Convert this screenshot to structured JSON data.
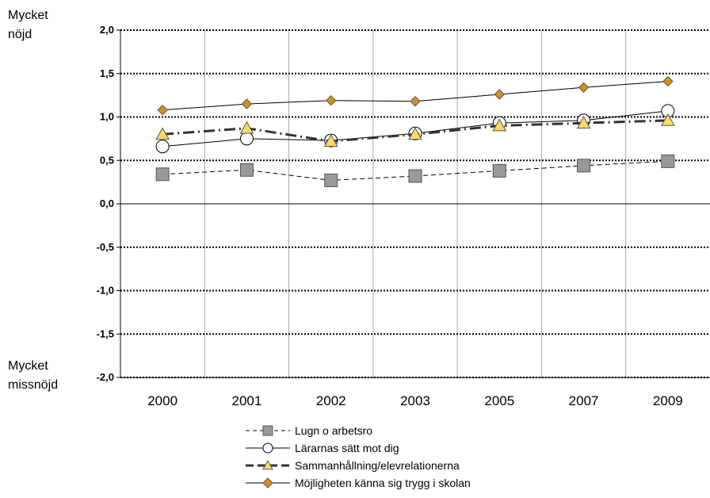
{
  "side_labels": {
    "top_line1": "Mycket",
    "top_line2": "nöjd",
    "bottom_line1": "Mycket",
    "bottom_line2": "missnöjd"
  },
  "chart_data": {
    "type": "line",
    "title": "",
    "xlabel": "",
    "ylabel": "",
    "categories": [
      "2000",
      "2001",
      "2002",
      "2003",
      "2005",
      "2007",
      "2009"
    ],
    "ylim": [
      -2.0,
      2.0
    ],
    "yticks": [
      2.0,
      1.5,
      1.0,
      0.5,
      0.0,
      -0.5,
      -1.0,
      -1.5,
      -2.0
    ],
    "ytick_labels": [
      "2,0",
      "1,5",
      "1,0",
      "0,5",
      "0,0",
      "-0,5",
      "-1,0",
      "-1,5",
      "-2,0"
    ],
    "grid": "horizontal dotted, vertical solid",
    "legend_position": "bottom",
    "series": [
      {
        "name": "Lugn o arbetsro",
        "values": [
          0.34,
          0.39,
          0.27,
          0.32,
          0.38,
          0.44,
          0.49
        ],
        "line": "dashed-thin",
        "marker": "square",
        "color": "#000000",
        "marker_fill": "#999999"
      },
      {
        "name": "Lärarnas sätt mot dig",
        "values": [
          0.66,
          0.75,
          0.73,
          0.81,
          0.93,
          0.96,
          1.07
        ],
        "line": "solid-thin",
        "marker": "circle",
        "color": "#000000",
        "marker_fill": "#ffffff"
      },
      {
        "name": "Sammanhållning/elevrelationerna",
        "values": [
          0.8,
          0.87,
          0.72,
          0.8,
          0.9,
          0.93,
          0.96
        ],
        "line": "dashed-thick",
        "marker": "triangle",
        "color": "#333333",
        "marker_fill": "#ffd966"
      },
      {
        "name": "Möjligheten känna sig trygg i skolan",
        "values": [
          1.08,
          1.15,
          1.19,
          1.18,
          1.26,
          1.34,
          1.41
        ],
        "line": "solid-thin",
        "marker": "diamond",
        "color": "#000000",
        "marker_fill": "#d98e1a"
      }
    ]
  }
}
